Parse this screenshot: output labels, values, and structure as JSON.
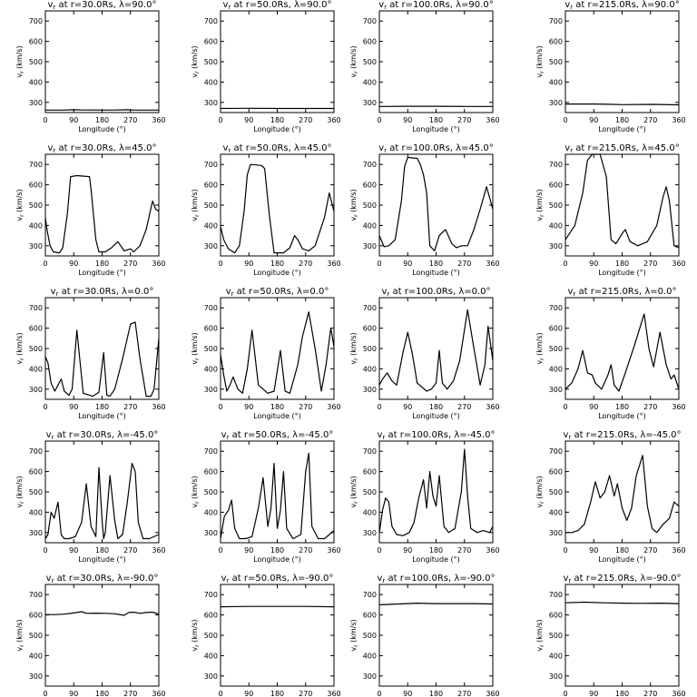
{
  "figure": {
    "xlabel": "Longitude (°)",
    "ylabel": "v",
    "ylabel_sub": "r",
    "ylabel_unit": " (km/s)",
    "xticks": [
      0,
      90,
      180,
      270,
      360
    ],
    "yticks": [
      300,
      400,
      500,
      600,
      700
    ],
    "xlim": [
      0,
      360
    ],
    "ylim": [
      250,
      750
    ]
  },
  "chart_data": [
    {
      "type": "line",
      "title_main": "v",
      "title_sub": "r",
      "title_rest": " at r=30.0Rs, λ=90.0°",
      "x": [
        0,
        60,
        70,
        90,
        110,
        200,
        240,
        260,
        280,
        360
      ],
      "values": [
        262,
        262,
        263,
        264,
        263,
        262,
        263,
        264,
        262,
        262
      ]
    },
    {
      "type": "line",
      "title_main": "v",
      "title_sub": "r",
      "title_rest": " at r=50.0Rs, λ=90.0°",
      "x": [
        0,
        90,
        180,
        270,
        360
      ],
      "values": [
        270,
        271,
        270,
        270,
        270
      ]
    },
    {
      "type": "line",
      "title_main": "v",
      "title_sub": "r",
      "title_rest": " at r=100.0Rs, λ=90.0°",
      "x": [
        0,
        90,
        180,
        270,
        360
      ],
      "values": [
        280,
        281,
        281,
        280,
        280
      ]
    },
    {
      "type": "line",
      "title_main": "v",
      "title_sub": "r",
      "title_rest": " at r=215.0Rs, λ=90.0°",
      "x": [
        0,
        90,
        150,
        180,
        270,
        360
      ],
      "values": [
        292,
        292,
        290,
        289,
        290,
        288
      ]
    },
    {
      "type": "line",
      "title_main": "v",
      "title_sub": "r",
      "title_rest": " at r=30.0Rs, λ=45.0°",
      "x": [
        0,
        5,
        15,
        25,
        45,
        55,
        70,
        80,
        100,
        140,
        145,
        160,
        170,
        190,
        210,
        230,
        250,
        270,
        280,
        300,
        320,
        340,
        350,
        360
      ],
      "values": [
        440,
        380,
        300,
        270,
        265,
        290,
        460,
        640,
        645,
        640,
        580,
        330,
        270,
        270,
        290,
        320,
        275,
        285,
        270,
        300,
        380,
        520,
        480,
        470
      ]
    },
    {
      "type": "line",
      "title_main": "v",
      "title_sub": "r",
      "title_rest": " at r=50.0Rs, λ=45.0°",
      "x": [
        0,
        10,
        25,
        45,
        60,
        75,
        85,
        95,
        130,
        140,
        155,
        170,
        200,
        220,
        235,
        245,
        260,
        280,
        300,
        330,
        345,
        360
      ],
      "values": [
        395,
        330,
        285,
        265,
        300,
        470,
        650,
        700,
        695,
        680,
        450,
        265,
        265,
        290,
        350,
        330,
        285,
        275,
        300,
        440,
        560,
        470
      ]
    },
    {
      "type": "line",
      "title_main": "v",
      "title_sub": "r",
      "title_rest": " at r=100.0Rs, λ=45.0°",
      "x": [
        0,
        15,
        30,
        50,
        70,
        80,
        90,
        120,
        130,
        140,
        150,
        160,
        175,
        190,
        210,
        230,
        245,
        260,
        280,
        300,
        320,
        340,
        360
      ],
      "values": [
        350,
        295,
        300,
        330,
        520,
        690,
        735,
        730,
        700,
        650,
        560,
        300,
        275,
        350,
        380,
        310,
        290,
        300,
        300,
        380,
        480,
        590,
        480
      ]
    },
    {
      "type": "line",
      "title_main": "v",
      "title_sub": "r",
      "title_rest": " at r=215.0Rs, λ=45.0°",
      "x": [
        0,
        30,
        55,
        70,
        85,
        110,
        130,
        145,
        160,
        180,
        190,
        205,
        230,
        260,
        290,
        310,
        320,
        330,
        345,
        360
      ],
      "values": [
        330,
        400,
        560,
        720,
        750,
        750,
        640,
        330,
        310,
        360,
        380,
        320,
        300,
        320,
        400,
        540,
        590,
        520,
        300,
        290
      ]
    },
    {
      "type": "line",
      "title_main": "v",
      "title_sub": "r",
      "title_rest": " at r=30.0Rs, λ=0.0°",
      "x": [
        0,
        8,
        18,
        30,
        40,
        50,
        60,
        75,
        85,
        100,
        120,
        150,
        170,
        185,
        195,
        205,
        220,
        245,
        270,
        285,
        300,
        320,
        335,
        345,
        360
      ],
      "values": [
        460,
        430,
        330,
        290,
        320,
        350,
        290,
        270,
        300,
        590,
        280,
        265,
        285,
        480,
        270,
        265,
        300,
        450,
        620,
        630,
        450,
        265,
        265,
        300,
        550
      ]
    },
    {
      "type": "line",
      "title_main": "v",
      "title_sub": "r",
      "title_rest": " at r=50.0Rs, λ=0.0°",
      "x": [
        0,
        10,
        20,
        30,
        40,
        55,
        70,
        85,
        100,
        120,
        150,
        170,
        190,
        205,
        220,
        245,
        260,
        280,
        300,
        320,
        335,
        350,
        360
      ],
      "values": [
        470,
        370,
        290,
        320,
        360,
        300,
        280,
        400,
        590,
        320,
        280,
        290,
        490,
        290,
        280,
        420,
        560,
        680,
        500,
        290,
        420,
        600,
        510
      ]
    },
    {
      "type": "line",
      "title_main": "v",
      "title_sub": "r",
      "title_rest": " at r=100.0Rs, λ=0.0°",
      "x": [
        0,
        10,
        25,
        40,
        55,
        75,
        90,
        105,
        120,
        150,
        165,
        180,
        190,
        200,
        215,
        235,
        255,
        280,
        300,
        320,
        335,
        345,
        360
      ],
      "values": [
        320,
        350,
        380,
        340,
        320,
        480,
        580,
        470,
        330,
        290,
        300,
        330,
        490,
        330,
        300,
        340,
        440,
        690,
        500,
        320,
        420,
        610,
        440
      ]
    },
    {
      "type": "line",
      "title_main": "v",
      "title_sub": "r",
      "title_rest": " at r=215.0Rs, λ=0.0°",
      "x": [
        0,
        20,
        40,
        55,
        70,
        85,
        95,
        115,
        135,
        145,
        155,
        170,
        190,
        220,
        250,
        265,
        280,
        300,
        320,
        335,
        345,
        360
      ],
      "values": [
        300,
        330,
        400,
        490,
        380,
        370,
        330,
        300,
        370,
        420,
        320,
        290,
        380,
        520,
        670,
        500,
        410,
        580,
        420,
        350,
        370,
        300
      ]
    },
    {
      "type": "line",
      "title_main": "v",
      "title_sub": "r",
      "title_rest": " at r=30.0Rs, λ=-45.0°",
      "x": [
        0,
        8,
        18,
        28,
        40,
        50,
        60,
        75,
        95,
        115,
        130,
        145,
        160,
        170,
        180,
        185,
        190,
        205,
        220,
        230,
        245,
        260,
        275,
        285,
        295,
        310,
        330,
        360
      ],
      "values": [
        270,
        290,
        400,
        370,
        450,
        290,
        270,
        270,
        280,
        350,
        540,
        330,
        280,
        620,
        360,
        270,
        300,
        580,
        360,
        270,
        290,
        450,
        640,
        600,
        350,
        270,
        270,
        290
      ]
    },
    {
      "type": "line",
      "title_main": "v",
      "title_sub": "r",
      "title_rest": " at r=50.0Rs, λ=-45.0°",
      "x": [
        0,
        12,
        25,
        35,
        45,
        60,
        80,
        100,
        120,
        135,
        150,
        160,
        170,
        180,
        190,
        200,
        210,
        230,
        255,
        270,
        280,
        290,
        310,
        330,
        360
      ],
      "values": [
        270,
        380,
        410,
        460,
        320,
        270,
        270,
        280,
        420,
        570,
        330,
        420,
        640,
        320,
        410,
        600,
        320,
        270,
        290,
        600,
        690,
        330,
        270,
        270,
        310
      ]
    },
    {
      "type": "line",
      "title_main": "v",
      "title_sub": "r",
      "title_rest": " at r=100.0Rs, λ=-45.0°",
      "x": [
        0,
        10,
        20,
        30,
        40,
        55,
        75,
        95,
        110,
        125,
        140,
        150,
        160,
        170,
        180,
        190,
        205,
        220,
        240,
        260,
        270,
        280,
        290,
        310,
        330,
        350,
        360
      ],
      "values": [
        300,
        410,
        470,
        450,
        330,
        290,
        285,
        300,
        350,
        470,
        560,
        420,
        600,
        480,
        430,
        580,
        330,
        300,
        320,
        500,
        710,
        480,
        320,
        300,
        310,
        300,
        330
      ]
    },
    {
      "type": "line",
      "title_main": "v",
      "title_sub": "r",
      "title_rest": " at r=215.0Rs, λ=-45.0°",
      "x": [
        0,
        20,
        40,
        60,
        80,
        95,
        110,
        125,
        140,
        155,
        165,
        180,
        195,
        210,
        225,
        245,
        260,
        275,
        290,
        310,
        330,
        345,
        360
      ],
      "values": [
        300,
        300,
        310,
        340,
        450,
        550,
        470,
        500,
        580,
        480,
        540,
        420,
        360,
        420,
        580,
        680,
        430,
        320,
        300,
        340,
        370,
        450,
        430
      ]
    },
    {
      "type": "line",
      "title_main": "v",
      "title_sub": "r",
      "title_rest": " at r=30.0Rs, λ=-90.0°",
      "x": [
        0,
        30,
        60,
        90,
        115,
        130,
        160,
        190,
        220,
        250,
        265,
        280,
        300,
        320,
        340,
        360
      ],
      "values": [
        602,
        602,
        604,
        610,
        616,
        608,
        609,
        608,
        606,
        598,
        612,
        614,
        608,
        612,
        614,
        604
      ]
    },
    {
      "type": "line",
      "title_main": "v",
      "title_sub": "r",
      "title_rest": " at r=50.0Rs, λ=-90.0°",
      "x": [
        0,
        90,
        180,
        270,
        360
      ],
      "values": [
        640,
        642,
        642,
        642,
        640
      ]
    },
    {
      "type": "line",
      "title_main": "v",
      "title_sub": "r",
      "title_rest": " at r=100.0Rs, λ=-90.0°",
      "x": [
        0,
        60,
        120,
        180,
        240,
        300,
        360
      ],
      "values": [
        650,
        654,
        658,
        656,
        656,
        656,
        654
      ]
    },
    {
      "type": "line",
      "title_main": "v",
      "title_sub": "r",
      "title_rest": " at r=215.0Rs, λ=-90.0°",
      "x": [
        0,
        60,
        120,
        180,
        240,
        300,
        360
      ],
      "values": [
        660,
        663,
        660,
        658,
        657,
        658,
        656
      ]
    }
  ]
}
